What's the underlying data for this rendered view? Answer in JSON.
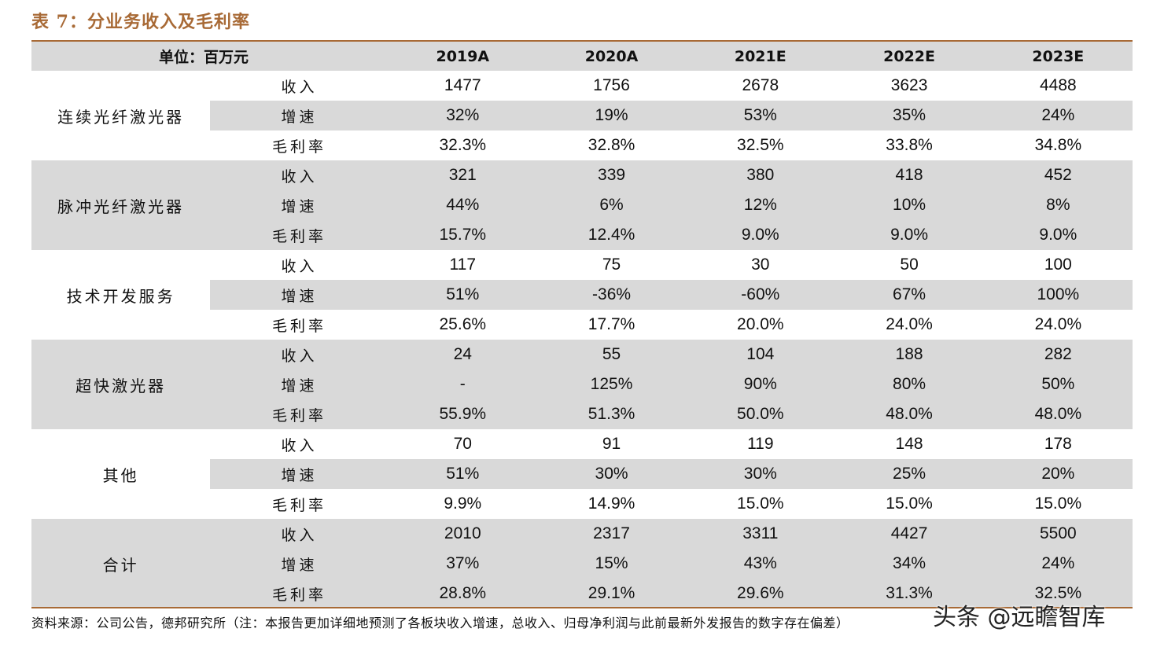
{
  "title": "表 7：分业务收入及毛利率",
  "header": {
    "unit_label": "单位：百万元",
    "years": [
      "2019A",
      "2020A",
      "2021E",
      "2022E",
      "2023E"
    ]
  },
  "metric_labels": [
    "收入",
    "增速",
    "毛利率"
  ],
  "segments": [
    {
      "name": "连续光纤激光器",
      "rows": [
        [
          "1477",
          "1756",
          "2678",
          "3623",
          "4488"
        ],
        [
          "32%",
          "19%",
          "53%",
          "35%",
          "24%"
        ],
        [
          "32.3%",
          "32.8%",
          "32.5%",
          "33.8%",
          "34.8%"
        ]
      ]
    },
    {
      "name": "脉冲光纤激光器",
      "rows": [
        [
          "321",
          "339",
          "380",
          "418",
          "452"
        ],
        [
          "44%",
          "6%",
          "12%",
          "10%",
          "8%"
        ],
        [
          "15.7%",
          "12.4%",
          "9.0%",
          "9.0%",
          "9.0%"
        ]
      ]
    },
    {
      "name": "技术开发服务",
      "rows": [
        [
          "117",
          "75",
          "30",
          "50",
          "100"
        ],
        [
          "51%",
          "-36%",
          "-60%",
          "67%",
          "100%"
        ],
        [
          "25.6%",
          "17.7%",
          "20.0%",
          "24.0%",
          "24.0%"
        ]
      ]
    },
    {
      "name": "超快激光器",
      "rows": [
        [
          "24",
          "55",
          "104",
          "188",
          "282"
        ],
        [
          "-",
          "125%",
          "90%",
          "80%",
          "50%"
        ],
        [
          "55.9%",
          "51.3%",
          "50.0%",
          "48.0%",
          "48.0%"
        ]
      ]
    },
    {
      "name": "其他",
      "rows": [
        [
          "70",
          "91",
          "119",
          "148",
          "178"
        ],
        [
          "51%",
          "30%",
          "30%",
          "25%",
          "20%"
        ],
        [
          "9.9%",
          "14.9%",
          "15.0%",
          "15.0%",
          "15.0%"
        ]
      ]
    },
    {
      "name": "合计",
      "rows": [
        [
          "2010",
          "2317",
          "3311",
          "4427",
          "5500"
        ],
        [
          "37%",
          "15%",
          "43%",
          "34%",
          "24%"
        ],
        [
          "28.8%",
          "29.1%",
          "29.6%",
          "31.3%",
          "32.5%"
        ]
      ]
    }
  ],
  "footer": "资料来源：公司公告，德邦研究所（注：本报告更加详细地预测了各板块收入增速，总收入、归母净利润与此前最新外发报告的数字存在偏差）",
  "watermark": "头条 @远瞻智库",
  "colors": {
    "accent": "#a86a36",
    "shade": "#d9d9d9"
  }
}
